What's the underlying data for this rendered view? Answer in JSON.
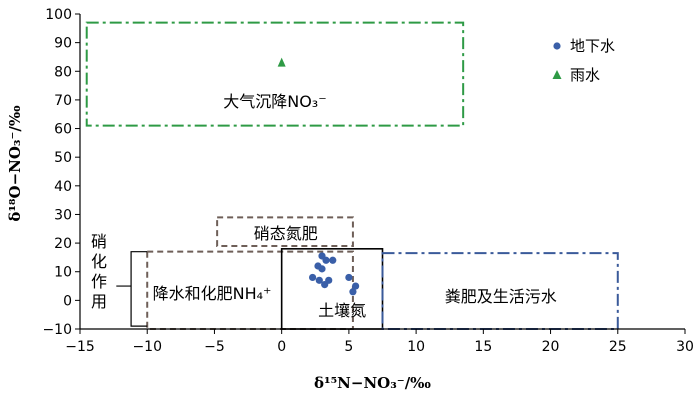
{
  "chart_data": {
    "type": "scatter",
    "xlabel": "δ¹⁵N−NO₃⁻/‰",
    "ylabel": "δ¹⁸O−NO₃⁻/‰",
    "xlim": [
      -15,
      30
    ],
    "ylim": [
      -10,
      100
    ],
    "x_ticks": [
      "−15",
      "−10",
      "−5",
      "0",
      "5",
      "10",
      "15",
      "20",
      "25",
      "30"
    ],
    "y_ticks": [
      "−10",
      "0",
      "10",
      "20",
      "30",
      "40",
      "50",
      "60",
      "70",
      "80",
      "90",
      "100"
    ],
    "legend_position": "top-right",
    "series": [
      {
        "name": "地下水",
        "marker": "circle",
        "color": "#3a5fa8",
        "points": [
          [
            3.0,
            15.5
          ],
          [
            3.3,
            14.0
          ],
          [
            3.8,
            14.0
          ],
          [
            2.7,
            12.0
          ],
          [
            3.0,
            11.0
          ],
          [
            2.3,
            8.0
          ],
          [
            2.8,
            7.0
          ],
          [
            3.5,
            7.0
          ],
          [
            3.2,
            5.5
          ],
          [
            5.0,
            8.0
          ],
          [
            5.5,
            5.0
          ],
          [
            5.3,
            3.0
          ]
        ]
      },
      {
        "name": "雨水",
        "marker": "triangle",
        "color": "#2e9a45",
        "points": [
          [
            0.0,
            83.0
          ]
        ]
      }
    ],
    "regions": [
      {
        "name": "atmospheric",
        "label": "大气沉降NO₃⁻",
        "x": [
          -14.5,
          13.5
        ],
        "y": [
          61,
          97
        ],
        "color": "#2e9a45",
        "dash": "dashdot"
      },
      {
        "name": "nitrate-fertilizer",
        "label": "硝态氮肥",
        "x": [
          -4.8,
          5.3
        ],
        "y": [
          19,
          29
        ],
        "color": "#6e5f58",
        "dash": "dashed"
      },
      {
        "name": "ammonium-fertilizer",
        "label": "降水和化肥NH₄⁺",
        "x": [
          -10,
          5.3
        ],
        "y": [
          -10,
          17
        ],
        "color": "#6e5f58",
        "dash": "dashed"
      },
      {
        "name": "soil-nitrogen",
        "label": "土壤氮",
        "x": [
          0,
          7.5
        ],
        "y": [
          -10,
          18
        ],
        "color": "#000000",
        "dash": "solid"
      },
      {
        "name": "manure-sewage",
        "label": "粪肥及生活污水",
        "x": [
          7.5,
          25
        ],
        "y": [
          -10,
          16.5
        ],
        "color": "#3a5a9a",
        "dash": "dashdot"
      }
    ],
    "annotations": [
      {
        "name": "nitrification",
        "label": [
          "硝",
          "化",
          "作",
          "用"
        ]
      }
    ]
  }
}
